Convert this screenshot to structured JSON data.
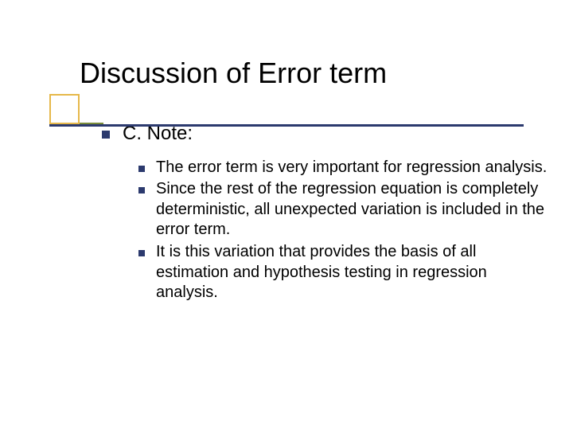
{
  "colors": {
    "accent_box": "#e6b84a",
    "accent_line": "#7a8c3a",
    "underline": "#2c3a6e",
    "bullet": "#2c3a6e",
    "text": "#000000",
    "background": "#ffffff"
  },
  "title": "Discussion of Error term",
  "level1_text": "C. Note:",
  "items": [
    "The error term is very important for regression analysis.",
    "Since the rest of the regression equation is completely deterministic, all unexpected variation is included in the error term.",
    "It is this variation that provides the basis of all estimation and hypothesis testing in regression analysis."
  ]
}
